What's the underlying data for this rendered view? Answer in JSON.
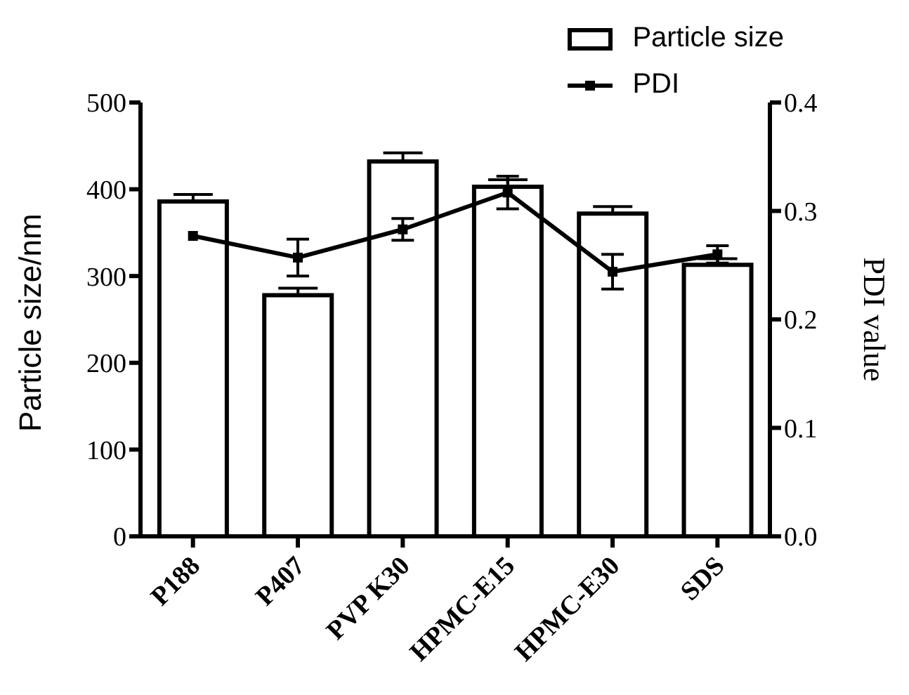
{
  "chart_data": {
    "type": "bar",
    "categories": [
      "P188",
      "P407",
      "PVP K30",
      "HPMC-E15",
      "HPMC-E30",
      "SDS"
    ],
    "series": [
      {
        "name": "Particle size",
        "color": "#ffffff",
        "values": [
          386,
          278,
          432,
          403,
          372,
          313
        ],
        "errors": [
          [
            386,
            394
          ],
          [
            278,
            286
          ],
          [
            432,
            442
          ],
          [
            403,
            411
          ],
          [
            372,
            380
          ],
          [
            313,
            320
          ]
        ]
      },
      {
        "name": "PDI",
        "type": "line",
        "axis": "y2",
        "color": "#000000",
        "values": [
          0.277,
          0.257,
          0.283,
          0.317,
          0.244,
          0.26
        ],
        "errors": [
          null,
          0.017,
          0.01,
          0.015,
          0.016,
          0.008
        ],
        "marker": "square"
      }
    ],
    "ylabel": "Particle size/nm",
    "y2label": "PDI value",
    "ylim": [
      0,
      500
    ],
    "yticks": [
      0,
      100,
      200,
      300,
      400,
      500
    ],
    "y2lim": [
      0,
      0.4
    ],
    "y2ticks": [
      {
        "value": 0,
        "label": "0.0"
      },
      0.1,
      0.2,
      0.3,
      0.4
    ],
    "legend": "top right"
  }
}
